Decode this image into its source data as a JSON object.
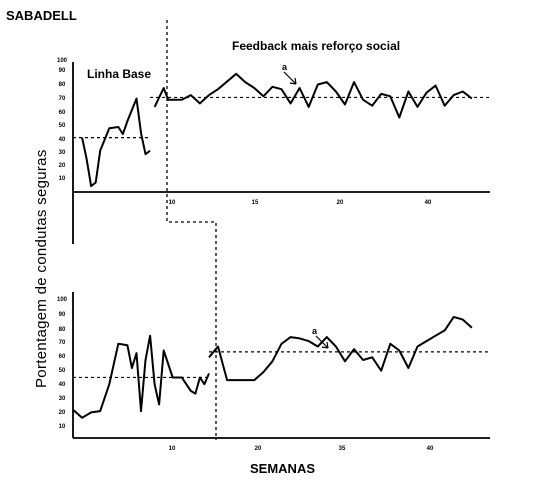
{
  "chart_data": [
    {
      "type": "line",
      "title": "SABADELL",
      "xlabel": "",
      "ylabel": "Portentagem de condutas seguras",
      "xlim": [
        1,
        47
      ],
      "ylim": [
        0,
        110
      ],
      "x_ticks": [
        "10",
        "15",
        "20",
        "40"
      ],
      "y_ticks": [
        "100",
        "90",
        "80",
        "70",
        "60",
        "50",
        "40",
        "30",
        "20",
        "10"
      ],
      "phases": [
        {
          "label": "Linha Base",
          "x_start": 1,
          "x_end": 9.5,
          "mean_level": 46
        },
        {
          "label": "Feedback mais reforço social",
          "x_start": 9.5,
          "x_end": 47,
          "mean_level": 80
        }
      ],
      "annotation": "a",
      "series": [
        {
          "values_baseline": [
            [
              2,
              46
            ],
            [
              2.5,
              28
            ],
            [
              3,
              5
            ],
            [
              3.5,
              8
            ],
            [
              4,
              35
            ],
            [
              5,
              54
            ],
            [
              6,
              55
            ],
            [
              6.5,
              49
            ],
            [
              7,
              60
            ],
            [
              8,
              79
            ],
            [
              8.5,
              50
            ],
            [
              9,
              32
            ],
            [
              9.5,
              35
            ]
          ],
          "values_intervention": [
            [
              10,
              72
            ],
            [
              11,
              88
            ],
            [
              11.5,
              78
            ],
            [
              13,
              78
            ],
            [
              14,
              82
            ],
            [
              15,
              75
            ],
            [
              16,
              82
            ],
            [
              17,
              87
            ],
            [
              19,
              100
            ],
            [
              20,
              93
            ],
            [
              21,
              88
            ],
            [
              22,
              81
            ],
            [
              23,
              89
            ],
            [
              24,
              87
            ],
            [
              25,
              75
            ],
            [
              26,
              88
            ],
            [
              27,
              72
            ],
            [
              28,
              91
            ],
            [
              29,
              93
            ],
            [
              30,
              85
            ],
            [
              31,
              74
            ],
            [
              32,
              93
            ],
            [
              33,
              78
            ],
            [
              34,
              73
            ],
            [
              35,
              83
            ],
            [
              36,
              81
            ],
            [
              37,
              63
            ],
            [
              38,
              85
            ],
            [
              39,
              72
            ],
            [
              40,
              84
            ],
            [
              41,
              90
            ],
            [
              42,
              73
            ],
            [
              43,
              82
            ],
            [
              44,
              85
            ],
            [
              45,
              79
            ]
          ]
        }
      ]
    },
    {
      "type": "line",
      "title": "",
      "xlabel": "SEMANAS",
      "ylabel": "Portentagem de condutas seguras",
      "xlim": [
        1,
        47
      ],
      "ylim": [
        0,
        110
      ],
      "x_ticks": [
        "10",
        "20",
        "35",
        "40"
      ],
      "y_ticks": [
        "100",
        "90",
        "80",
        "70",
        "60",
        "50",
        "40",
        "30",
        "20",
        "10"
      ],
      "phases": [
        {
          "label": "",
          "x_start": 1,
          "x_end": 16,
          "mean_level": 45
        },
        {
          "label": "",
          "x_start": 16,
          "x_end": 47,
          "mean_level": 64
        }
      ],
      "annotation": "a",
      "series": [
        {
          "values_baseline": [
            [
              1,
              21
            ],
            [
              2,
              15
            ],
            [
              3,
              19
            ],
            [
              4,
              20
            ],
            [
              5,
              40
            ],
            [
              6,
              70
            ],
            [
              7,
              69
            ],
            [
              7.5,
              52
            ],
            [
              8,
              63
            ],
            [
              8.5,
              20
            ],
            [
              9,
              58
            ],
            [
              9.5,
              76
            ],
            [
              10,
              40
            ],
            [
              10.5,
              25
            ],
            [
              11,
              65
            ],
            [
              12,
              45
            ],
            [
              13,
              45
            ],
            [
              14,
              35
            ],
            [
              14.5,
              33
            ],
            [
              15,
              45
            ],
            [
              15.5,
              40
            ],
            [
              16,
              48
            ]
          ],
          "values_intervention": [
            [
              16,
              60
            ],
            [
              17,
              68
            ],
            [
              18,
              43
            ],
            [
              21,
              43
            ],
            [
              22,
              49
            ],
            [
              23,
              57
            ],
            [
              24,
              70
            ],
            [
              25,
              75
            ],
            [
              26,
              74
            ],
            [
              27,
              72
            ],
            [
              28,
              68
            ],
            [
              29,
              75
            ],
            [
              30,
              68
            ],
            [
              31,
              57
            ],
            [
              32,
              66
            ],
            [
              33,
              58
            ],
            [
              34,
              60
            ],
            [
              35,
              50
            ],
            [
              36,
              70
            ],
            [
              37,
              65
            ],
            [
              38,
              52
            ],
            [
              39,
              68
            ],
            [
              40,
              72
            ],
            [
              41,
              76
            ],
            [
              42,
              80
            ],
            [
              43,
              90
            ],
            [
              44,
              88
            ],
            [
              45,
              82
            ]
          ]
        }
      ]
    }
  ]
}
